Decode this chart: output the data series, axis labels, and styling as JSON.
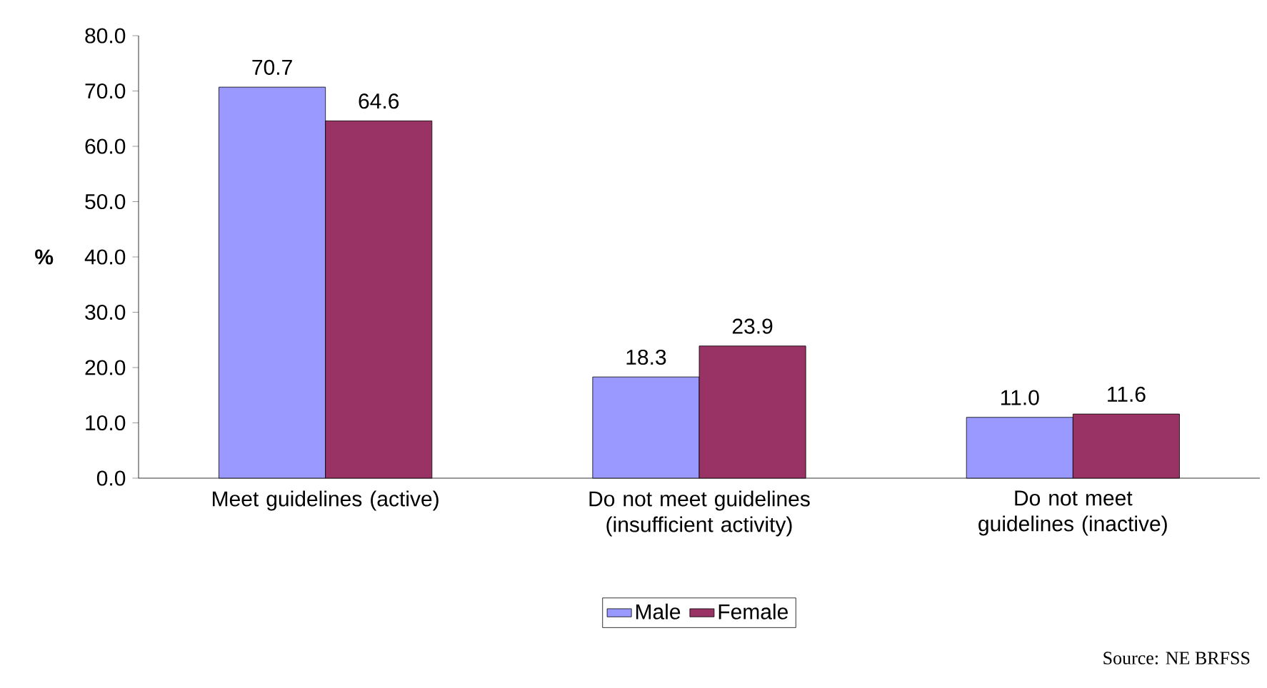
{
  "chart_data": {
    "type": "bar",
    "ylabel": "%",
    "categories": [
      "Meet guidelines (active)",
      "Do not meet guidelines (insufficient activity)",
      "Do not meet guidelines (inactive)"
    ],
    "series": [
      {
        "name": "Male",
        "color": "#9999ff",
        "values": [
          70.7,
          18.3,
          11.0
        ],
        "value_labels": [
          "70.7",
          "18.3",
          "11.0"
        ]
      },
      {
        "name": "Female",
        "color": "#993366",
        "values": [
          64.6,
          23.9,
          11.6
        ],
        "value_labels": [
          "64.6",
          "23.9",
          "11.6"
        ]
      }
    ],
    "ylim": [
      0,
      80
    ],
    "yticks": [
      {
        "value": 0,
        "label": "0.0"
      },
      {
        "value": 10,
        "label": "10.0"
      },
      {
        "value": 20,
        "label": "20.0"
      },
      {
        "value": 30,
        "label": "30.0"
      },
      {
        "value": 40,
        "label": "40.0"
      },
      {
        "value": 50,
        "label": "50.0"
      },
      {
        "value": 60,
        "label": "60.0"
      },
      {
        "value": 70,
        "label": "70.0"
      },
      {
        "value": 80,
        "label": "80.0"
      }
    ],
    "grid": false,
    "legend": "bottom",
    "annotations": [
      "Source: NE BRFSS"
    ]
  }
}
